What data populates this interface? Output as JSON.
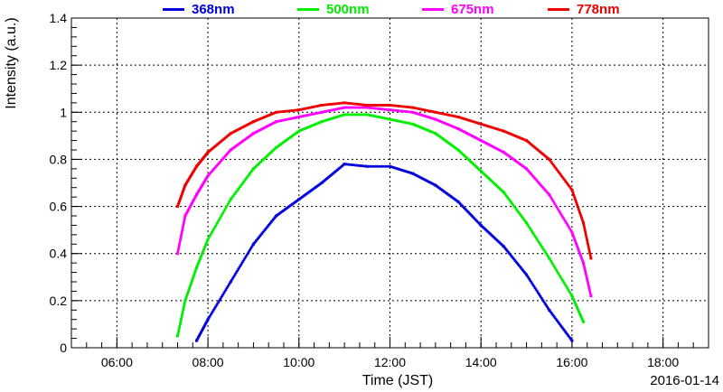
{
  "chart_data": {
    "type": "scatter",
    "title": "",
    "xlabel": "Time (JST)",
    "ylabel": "Intensity (a.u.)",
    "date_label": "2016-01-14",
    "xlim": [
      "05:00",
      "19:00"
    ],
    "ylim": [
      0,
      1.4
    ],
    "x_ticks": [
      "06:00",
      "08:00",
      "10:00",
      "12:00",
      "14:00",
      "16:00",
      "18:00"
    ],
    "y_ticks": [
      "0",
      "0.2",
      "0.4",
      "0.6",
      "0.8",
      "1",
      "1.2",
      "1.4"
    ],
    "grid": true,
    "legend_position": "top",
    "x": [
      "07:20",
      "07:30",
      "07:45",
      "08:00",
      "08:30",
      "09:00",
      "09:30",
      "10:00",
      "10:30",
      "11:00",
      "11:30",
      "12:00",
      "12:30",
      "13:00",
      "13:30",
      "14:00",
      "14:30",
      "15:00",
      "15:30",
      "16:00",
      "16:15",
      "16:25"
    ],
    "series": [
      {
        "name": "368nm",
        "color": "#0000dd",
        "values": [
          null,
          null,
          0.03,
          0.12,
          0.28,
          0.44,
          0.56,
          0.63,
          0.7,
          0.78,
          0.77,
          0.77,
          0.74,
          0.69,
          0.62,
          0.52,
          0.43,
          0.31,
          0.16,
          0.03,
          null,
          null
        ]
      },
      {
        "name": "500nm",
        "color": "#00ee00",
        "values": [
          0.05,
          0.2,
          0.34,
          0.46,
          0.63,
          0.76,
          0.85,
          0.92,
          0.96,
          0.99,
          0.99,
          0.97,
          0.95,
          0.91,
          0.84,
          0.75,
          0.66,
          0.53,
          0.38,
          0.22,
          0.11,
          null
        ]
      },
      {
        "name": "675nm",
        "color": "#ff00ff",
        "values": [
          0.4,
          0.56,
          0.65,
          0.73,
          0.84,
          0.91,
          0.96,
          0.98,
          1.0,
          1.02,
          1.02,
          1.01,
          1.0,
          0.97,
          0.93,
          0.88,
          0.83,
          0.76,
          0.65,
          0.49,
          0.36,
          0.22
        ]
      },
      {
        "name": "778nm",
        "color": "#ee0000",
        "values": [
          0.6,
          0.69,
          0.77,
          0.83,
          0.91,
          0.96,
          1.0,
          1.01,
          1.03,
          1.04,
          1.03,
          1.03,
          1.02,
          1.0,
          0.98,
          0.95,
          0.92,
          0.88,
          0.8,
          0.67,
          0.53,
          0.38
        ]
      }
    ]
  }
}
